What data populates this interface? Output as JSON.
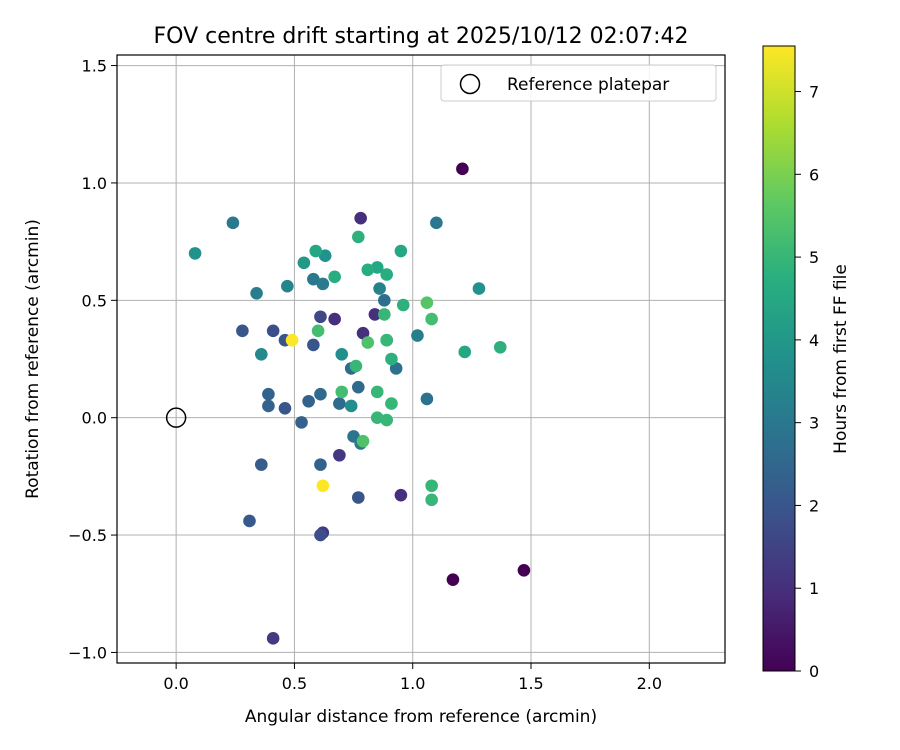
{
  "chart_data": {
    "type": "scatter",
    "title": "FOV centre drift starting at 2025/10/12 02:07:42",
    "xlabel": "Angular distance from reference (arcmin)",
    "ylabel": "Rotation from reference (arcmin)",
    "xlim": [
      -0.25,
      2.32
    ],
    "ylim": [
      -1.045,
      1.545
    ],
    "xticks": [
      0.0,
      0.5,
      1.0,
      1.5,
      2.0
    ],
    "xtick_labels": [
      "0.0",
      "0.5",
      "1.0",
      "1.5",
      "2.0"
    ],
    "yticks": [
      -1.0,
      -0.5,
      0.0,
      0.5,
      1.0,
      1.5
    ],
    "ytick_labels": [
      "−1.0",
      "−0.5",
      "0.0",
      "0.5",
      "1.0",
      "1.5"
    ],
    "grid": true,
    "legend": {
      "position": "top-right",
      "entries": [
        "Reference platepar"
      ]
    },
    "reference_point": {
      "x": 0.0,
      "y": 0.0
    },
    "colorbar": {
      "label": "Hours from first FF file",
      "range": [
        0,
        7.55
      ],
      "ticks": [
        0,
        1,
        2,
        3,
        4,
        5,
        6,
        7
      ],
      "tick_labels": [
        "0",
        "1",
        "2",
        "3",
        "4",
        "5",
        "6",
        "7"
      ],
      "colormap": "viridis"
    },
    "points": [
      {
        "x": 1.21,
        "y": 1.06,
        "c": 0.0
      },
      {
        "x": 1.17,
        "y": -0.69,
        "c": 0.0
      },
      {
        "x": 1.47,
        "y": -0.65,
        "c": 0.0
      },
      {
        "x": 0.78,
        "y": 0.85,
        "c": 1.0
      },
      {
        "x": 0.84,
        "y": 0.44,
        "c": 1.0
      },
      {
        "x": 0.79,
        "y": 0.36,
        "c": 1.0
      },
      {
        "x": 0.67,
        "y": 0.42,
        "c": 1.0
      },
      {
        "x": 0.95,
        "y": -0.33,
        "c": 1.0
      },
      {
        "x": 0.69,
        "y": -0.16,
        "c": 1.2
      },
      {
        "x": 0.62,
        "y": -0.49,
        "c": 1.3
      },
      {
        "x": 0.41,
        "y": -0.94,
        "c": 1.3
      },
      {
        "x": 0.61,
        "y": 0.43,
        "c": 1.6
      },
      {
        "x": 0.41,
        "y": 0.37,
        "c": 1.8
      },
      {
        "x": 0.61,
        "y": -0.5,
        "c": 1.8
      },
      {
        "x": 0.46,
        "y": 0.33,
        "c": 2.0
      },
      {
        "x": 0.28,
        "y": 0.37,
        "c": 2.0
      },
      {
        "x": 0.58,
        "y": 0.31,
        "c": 2.0
      },
      {
        "x": 0.46,
        "y": 0.04,
        "c": 2.0
      },
      {
        "x": 0.77,
        "y": -0.34,
        "c": 2.0
      },
      {
        "x": 0.31,
        "y": -0.44,
        "c": 2.1
      },
      {
        "x": 0.36,
        "y": -0.2,
        "c": 2.2
      },
      {
        "x": 0.39,
        "y": 0.1,
        "c": 2.4
      },
      {
        "x": 0.39,
        "y": 0.05,
        "c": 2.4
      },
      {
        "x": 0.56,
        "y": 0.07,
        "c": 2.4
      },
      {
        "x": 0.53,
        "y": -0.02,
        "c": 2.4
      },
      {
        "x": 0.61,
        "y": -0.2,
        "c": 2.4
      },
      {
        "x": 0.61,
        "y": 0.1,
        "c": 2.6
      },
      {
        "x": 0.74,
        "y": 0.21,
        "c": 2.6
      },
      {
        "x": 0.77,
        "y": 0.13,
        "c": 2.6
      },
      {
        "x": 0.69,
        "y": 0.06,
        "c": 2.6
      },
      {
        "x": 0.88,
        "y": 0.5,
        "c": 2.7
      },
      {
        "x": 0.93,
        "y": 0.21,
        "c": 2.8
      },
      {
        "x": 1.06,
        "y": 0.08,
        "c": 2.8
      },
      {
        "x": 0.75,
        "y": -0.08,
        "c": 2.9
      },
      {
        "x": 0.78,
        "y": -0.11,
        "c": 3.0
      },
      {
        "x": 0.24,
        "y": 0.83,
        "c": 3.0
      },
      {
        "x": 1.1,
        "y": 0.83,
        "c": 3.0
      },
      {
        "x": 0.58,
        "y": 0.59,
        "c": 3.0
      },
      {
        "x": 0.62,
        "y": 0.57,
        "c": 3.1
      },
      {
        "x": 1.02,
        "y": 0.35,
        "c": 3.2
      },
      {
        "x": 0.34,
        "y": 0.53,
        "c": 3.2
      },
      {
        "x": 0.86,
        "y": 0.55,
        "c": 3.3
      },
      {
        "x": 0.47,
        "y": 0.56,
        "c": 3.4
      },
      {
        "x": 0.36,
        "y": 0.27,
        "c": 3.5
      },
      {
        "x": 0.7,
        "y": 0.27,
        "c": 3.7
      },
      {
        "x": 0.74,
        "y": 0.05,
        "c": 3.7
      },
      {
        "x": 0.08,
        "y": 0.7,
        "c": 3.8
      },
      {
        "x": 0.63,
        "y": 0.69,
        "c": 3.8
      },
      {
        "x": 1.28,
        "y": 0.55,
        "c": 3.8
      },
      {
        "x": 0.54,
        "y": 0.66,
        "c": 4.0
      },
      {
        "x": 0.59,
        "y": 0.71,
        "c": 4.5
      },
      {
        "x": 0.85,
        "y": 0.64,
        "c": 4.5
      },
      {
        "x": 0.95,
        "y": 0.71,
        "c": 4.5
      },
      {
        "x": 1.22,
        "y": 0.28,
        "c": 4.5
      },
      {
        "x": 0.81,
        "y": 0.63,
        "c": 4.7
      },
      {
        "x": 0.89,
        "y": 0.61,
        "c": 4.7
      },
      {
        "x": 0.67,
        "y": 0.6,
        "c": 4.7
      },
      {
        "x": 0.77,
        "y": 0.77,
        "c": 4.8
      },
      {
        "x": 0.96,
        "y": 0.48,
        "c": 4.8
      },
      {
        "x": 0.89,
        "y": 0.33,
        "c": 4.8
      },
      {
        "x": 0.91,
        "y": 0.25,
        "c": 4.8
      },
      {
        "x": 1.37,
        "y": 0.3,
        "c": 4.8
      },
      {
        "x": 0.88,
        "y": 0.44,
        "c": 5.0
      },
      {
        "x": 0.89,
        "y": 0.33,
        "c": 5.0
      },
      {
        "x": 0.76,
        "y": 0.22,
        "c": 5.0
      },
      {
        "x": 0.85,
        "y": 0.11,
        "c": 5.0
      },
      {
        "x": 0.91,
        "y": 0.06,
        "c": 5.0
      },
      {
        "x": 0.85,
        "y": 0.0,
        "c": 5.0
      },
      {
        "x": 0.89,
        "y": -0.01,
        "c": 5.0
      },
      {
        "x": 1.08,
        "y": -0.29,
        "c": 5.0
      },
      {
        "x": 1.08,
        "y": -0.35,
        "c": 5.0
      },
      {
        "x": 0.6,
        "y": 0.37,
        "c": 5.2
      },
      {
        "x": 0.7,
        "y": 0.11,
        "c": 5.2
      },
      {
        "x": 1.08,
        "y": 0.42,
        "c": 5.2
      },
      {
        "x": 0.81,
        "y": 0.32,
        "c": 5.4
      },
      {
        "x": 0.79,
        "y": -0.1,
        "c": 5.4
      },
      {
        "x": 1.06,
        "y": 0.49,
        "c": 5.5
      },
      {
        "x": 0.49,
        "y": 0.33,
        "c": 7.55
      },
      {
        "x": 0.62,
        "y": -0.29,
        "c": 7.55
      }
    ]
  }
}
